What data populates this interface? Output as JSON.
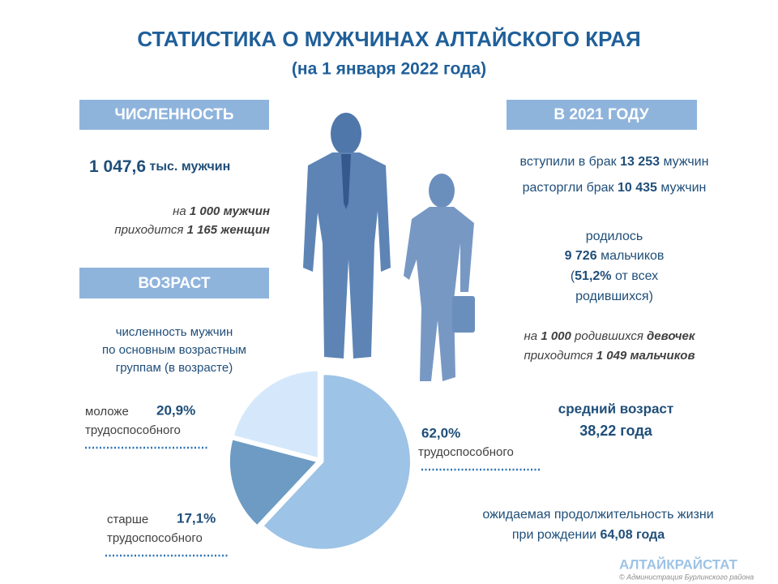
{
  "header": {
    "title": "СТАТИСТИКА О МУЖЧИНАХ АЛТАЙСКОГО КРАЯ",
    "subtitle": "(на 1 января 2022 года)"
  },
  "population": {
    "heading": "ЧИСЛЕННОСТЬ",
    "count": "1 047,6",
    "count_unit": "тыс.",
    "count_noun": "мужчин",
    "ratio": [
      "на",
      "1 000",
      "мужчин",
      "приходится",
      "1 165",
      "женщин"
    ]
  },
  "age": {
    "heading": "ВОЗРАСТ",
    "caption": [
      "численность мужчин",
      "по основным возрастным",
      "группам (в возрасте)"
    ]
  },
  "year2021": {
    "heading": "В 2021 ГОДУ",
    "marriages": [
      "вступили в брак",
      "13 253",
      "мужчин"
    ],
    "divorces": [
      "расторгли брак",
      "10 435",
      "мужчин"
    ],
    "births": [
      "родилось",
      "9 726",
      "мальчиков",
      "(",
      "51,2%",
      "от всех",
      "родившихся)"
    ],
    "birth_ratio": [
      "на",
      "1 000",
      "родившихся",
      "девочек",
      "приходится",
      "1 049",
      "мальчиков"
    ]
  },
  "indicators": {
    "mean_age_label": "средний возраст",
    "mean_age": "38,22 года",
    "life_expectancy": [
      "ожидаемая продолжительность жизни",
      "при рождении",
      "64,08 года"
    ]
  },
  "footer": {
    "brand": "АЛТАЙКРАЙСТАТ",
    "credit": "© Администрация Бурлинского района"
  },
  "chart_data": {
    "type": "pie",
    "categories": [
      [
        "трудоспособного"
      ],
      [
        "старше",
        "трудоспособного"
      ],
      [
        "моложе",
        "трудоспособного"
      ]
    ],
    "values": [
      62.0,
      17.1,
      20.9
    ],
    "value_labels": [
      "62,0%",
      "17,1%",
      "20,9%"
    ],
    "colors": [
      "#9dc3e6",
      "#6d9bc3",
      "#d5e8fb"
    ]
  }
}
